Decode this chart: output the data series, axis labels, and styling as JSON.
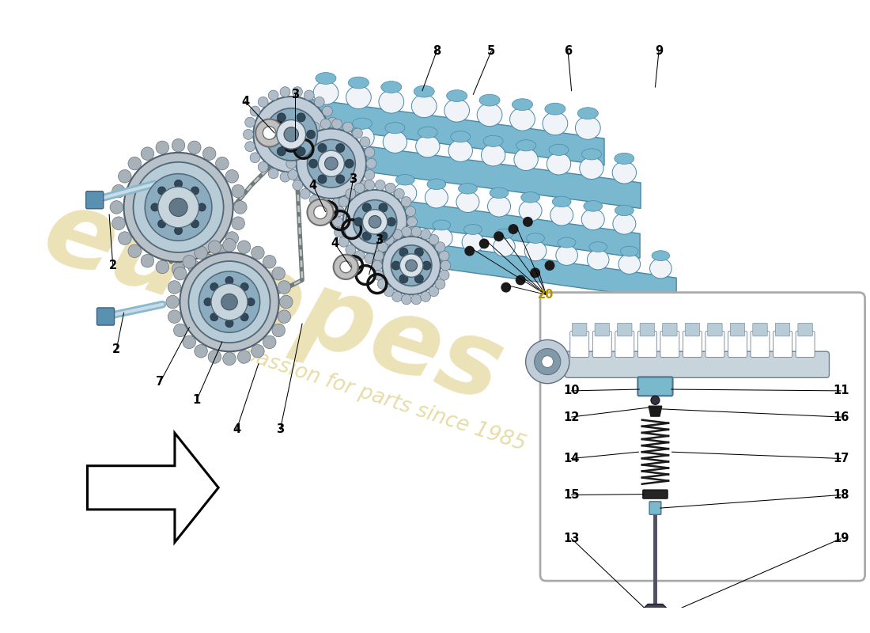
{
  "bg_color": "#ffffff",
  "watermark_color_1": "#d4c060",
  "watermark_color_2": "#d4c060",
  "cam_blue": "#7ab8d0",
  "cam_blue_dark": "#4a88a8",
  "cam_blue_light": "#aad0e8",
  "cam_white": "#f0f4f8",
  "chain_dark": "#888888",
  "chain_mid": "#b8b8b8",
  "phaser_blue": "#8ab8d0",
  "phaser_ring": "#c8d8e4",
  "phaser_dark": "#506878",
  "bolt_blue": "#8ab8cc",
  "bolt_head": "#5a90b0",
  "oring_dark": "#1a1a1a",
  "washer_gray": "#c0c0c0",
  "inset_bg": "#ffffff",
  "inset_border": "#aaaaaa",
  "label_color": "#000000",
  "label20_color": "#b09000",
  "dot_color": "#1a1a1a"
}
